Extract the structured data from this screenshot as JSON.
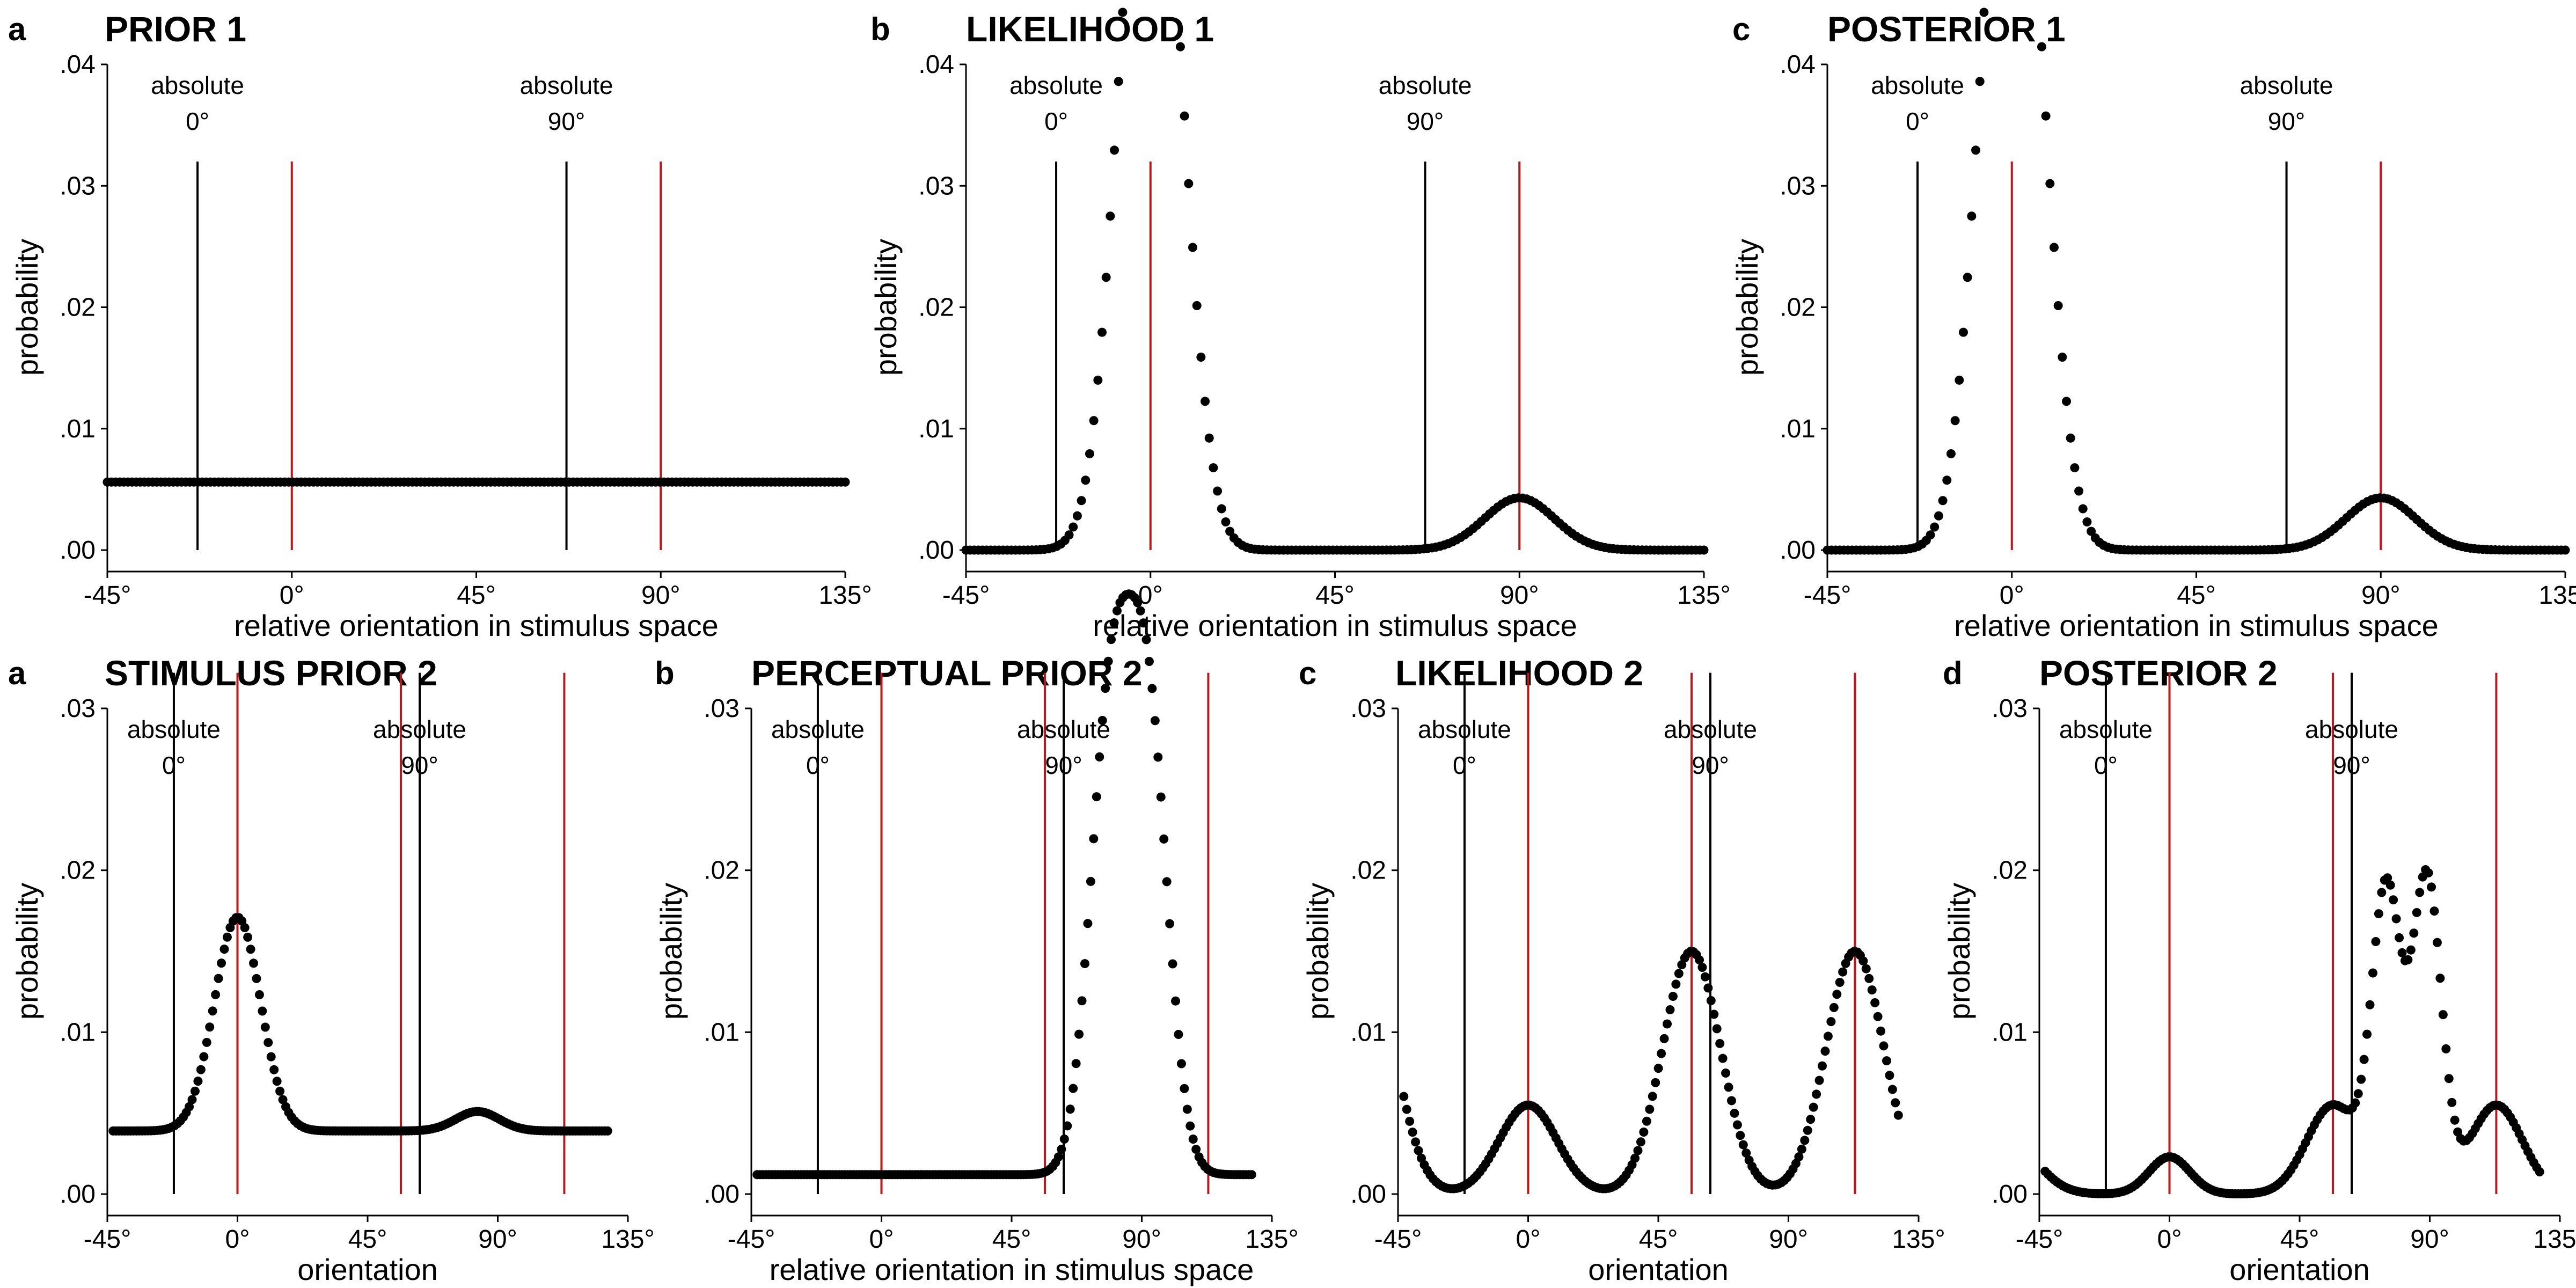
{
  "colors": {
    "dots": "#000000",
    "stimulus_line": "#000000",
    "perceptual_line": "#c0141a"
  },
  "chart_data": [
    {
      "type": "scatter",
      "letter": "a",
      "title": "PRIOR 1",
      "xlabel": "relative orientation in stimulus space",
      "ylabel": "probability",
      "xlim": [
        -45,
        135
      ],
      "ylim": [
        0,
        0.04
      ],
      "xticks": [
        -45,
        0,
        45,
        90,
        135
      ],
      "xtick_labels": [
        "-45°",
        "0°",
        "45°",
        "90°",
        "135°"
      ],
      "yticks": [
        0,
        0.01,
        0.02,
        0.03,
        0.04
      ],
      "ytick_labels": [
        ".00",
        ".01",
        ".02",
        ".03",
        ".04"
      ],
      "black_lines": [
        -23,
        67
      ],
      "red_lines": [
        0,
        90
      ],
      "line_top": 0.032,
      "annotations": [
        {
          "x": -23,
          "line1": "absolute",
          "line2": "0°"
        },
        {
          "x": 67,
          "line1": "absolute",
          "line2": "90°"
        }
      ],
      "curve": {
        "x_range": [
          -45,
          135
        ],
        "n": 180,
        "baseline": 0.0056,
        "peaks": []
      },
      "grid": false,
      "legend": "none"
    },
    {
      "type": "scatter",
      "letter": "b",
      "title": "LIKELIHOOD 1",
      "xlabel": "relative orientation in stimulus space",
      "ylabel": "probability",
      "xlim": [
        -45,
        135
      ],
      "ylim": [
        0,
        0.04
      ],
      "xticks": [
        -45,
        0,
        45,
        90,
        135
      ],
      "xtick_labels": [
        "-45°",
        "0°",
        "45°",
        "90°",
        "135°"
      ],
      "yticks": [
        0,
        0.01,
        0.02,
        0.03,
        0.04
      ],
      "ytick_labels": [
        ".00",
        ".01",
        ".02",
        ".03",
        ".04"
      ],
      "black_lines": [
        -23,
        67
      ],
      "red_lines": [
        0,
        90
      ],
      "line_top": 0.032,
      "annotations": [
        {
          "x": -23,
          "line1": "absolute",
          "line2": "0°"
        },
        {
          "x": 67,
          "line1": "absolute",
          "line2": "90°"
        }
      ],
      "curve": {
        "x_range": [
          -45,
          135
        ],
        "n": 180,
        "baseline": 0.0,
        "peaks": [
          {
            "mu": -3.5,
            "sigma": 6.2,
            "amp": 0.0395
          },
          {
            "mu": 3.5,
            "sigma": 6.2,
            "amp": 0.0395
          },
          {
            "mu": 90,
            "sigma": 8.5,
            "amp": 0.0043
          }
        ]
      },
      "grid": false,
      "legend": "none"
    },
    {
      "type": "scatter",
      "letter": "c",
      "title": "POSTERIOR 1",
      "xlabel": "relative orientation in stimulus space",
      "ylabel": "probability",
      "xlim": [
        -45,
        135
      ],
      "ylim": [
        0,
        0.04
      ],
      "xticks": [
        -45,
        0,
        45,
        90,
        135
      ],
      "xtick_labels": [
        "-45°",
        "0°",
        "45°",
        "90°",
        "135°"
      ],
      "yticks": [
        0,
        0.01,
        0.02,
        0.03,
        0.04
      ],
      "ytick_labels": [
        ".00",
        ".01",
        ".02",
        ".03",
        ".04"
      ],
      "black_lines": [
        -23,
        67
      ],
      "red_lines": [
        0,
        90
      ],
      "line_top": 0.032,
      "annotations": [
        {
          "x": -23,
          "line1": "absolute",
          "line2": "0°"
        },
        {
          "x": 67,
          "line1": "absolute",
          "line2": "90°"
        }
      ],
      "curve": {
        "x_range": [
          -45,
          135
        ],
        "n": 180,
        "baseline": 0.0,
        "peaks": [
          {
            "mu": -3.5,
            "sigma": 6.2,
            "amp": 0.0395
          },
          {
            "mu": 3.5,
            "sigma": 6.2,
            "amp": 0.0395
          },
          {
            "mu": 90,
            "sigma": 8.5,
            "amp": 0.0043
          }
        ]
      },
      "grid": false,
      "legend": "none"
    },
    {
      "type": "scatter",
      "letter": "a",
      "title": "STIMULUS PRIOR 2",
      "xlabel": "orientation",
      "ylabel": "probability",
      "xlim": [
        -45,
        135
      ],
      "ylim": [
        0,
        0.03
      ],
      "xticks": [
        -45,
        0,
        45,
        90,
        135
      ],
      "xtick_labels": [
        "-45°",
        "0°",
        "45°",
        "90°",
        "135°"
      ],
      "yticks": [
        0,
        0.01,
        0.02,
        0.03
      ],
      "ytick_labels": [
        ".00",
        ".01",
        ".02",
        ".03"
      ],
      "black_lines": [
        -22,
        63
      ],
      "red_lines": [
        0,
        56.5,
        113
      ],
      "line_top": 0.0322,
      "annotations": [
        {
          "x": -22,
          "line1": "absolute",
          "line2": "0°"
        },
        {
          "x": 63,
          "line1": "absolute",
          "line2": "90°"
        }
      ],
      "curve": {
        "x_range": [
          -43,
          128
        ],
        "n": 170,
        "baseline": 0.0039,
        "peaks": [
          {
            "mu": 0,
            "sigma": 8,
            "amp": 0.0132
          },
          {
            "mu": 83,
            "sigma": 7.5,
            "amp": 0.0012
          }
        ]
      },
      "grid": false,
      "legend": "none"
    },
    {
      "type": "scatter",
      "letter": "b",
      "title": "PERCEPTUAL PRIOR 2",
      "xlabel": "relative orientation in stimulus space",
      "ylabel": "probability",
      "xlim": [
        -45,
        135
      ],
      "ylim": [
        0,
        0.03
      ],
      "xticks": [
        -45,
        0,
        45,
        90,
        135
      ],
      "xtick_labels": [
        "-45°",
        "0°",
        "45°",
        "90°",
        "135°"
      ],
      "black_lines": [
        -22,
        63
      ],
      "red_lines": [
        0,
        56.5,
        113
      ],
      "line_top": 0.0322,
      "yticks": [
        0,
        0.01,
        0.02,
        0.03
      ],
      "ytick_labels": [
        ".00",
        ".01",
        ".02",
        ".03"
      ],
      "annotations": [
        {
          "x": -22,
          "line1": "absolute",
          "line2": "0°"
        },
        {
          "x": 63,
          "line1": "absolute",
          "line2": "90°"
        }
      ],
      "curve": {
        "x_range": [
          -43,
          128
        ],
        "n": 170,
        "baseline": 0.0012,
        "peaks": [
          {
            "mu": 79,
            "sigma": 7,
            "amp": 0.0276
          },
          {
            "mu": 92,
            "sigma": 7,
            "amp": 0.0276
          }
        ]
      },
      "grid": false,
      "legend": "none"
    },
    {
      "type": "scatter",
      "letter": "c",
      "title": "LIKELIHOOD 2",
      "xlabel": "orientation",
      "ylabel": "probability",
      "xlim": [
        -45,
        135
      ],
      "ylim": [
        0,
        0.03
      ],
      "xticks": [
        -45,
        0,
        45,
        90,
        135
      ],
      "xtick_labels": [
        "-45°",
        "0°",
        "45°",
        "90°",
        "135°"
      ],
      "yticks": [
        0,
        0.01,
        0.02,
        0.03
      ],
      "ytick_labels": [
        ".00",
        ".01",
        ".02",
        ".03"
      ],
      "black_lines": [
        -22,
        63
      ],
      "red_lines": [
        0,
        56.5,
        113
      ],
      "line_top": 0.0322,
      "annotations": [
        {
          "x": -22,
          "line1": "absolute",
          "line2": "0°"
        },
        {
          "x": 63,
          "line1": "absolute",
          "line2": "90°"
        }
      ],
      "curve": {
        "x_range": [
          -43,
          128
        ],
        "n": 170,
        "baseline": 0.0,
        "peaks": [
          {
            "mu": -56.5,
            "sigma": 10,
            "amp": 0.015
          },
          {
            "mu": 0,
            "sigma": 10,
            "amp": 0.0055
          },
          {
            "mu": 56.5,
            "sigma": 10,
            "amp": 0.015
          },
          {
            "mu": 113,
            "sigma": 10,
            "amp": 0.015
          },
          {
            "mu": 169.5,
            "sigma": 10,
            "amp": 0.0055
          }
        ]
      },
      "grid": false,
      "legend": "none"
    },
    {
      "type": "scatter",
      "letter": "d",
      "title": "POSTERIOR 2",
      "xlabel": "orientation",
      "ylabel": "probability",
      "xlim": [
        -45,
        135
      ],
      "ylim": [
        0,
        0.03
      ],
      "xticks": [
        -45,
        0,
        45,
        90,
        135
      ],
      "xtick_labels": [
        "-45°",
        "0°",
        "45°",
        "90°",
        "135°"
      ],
      "yticks": [
        0,
        0.01,
        0.02,
        0.03
      ],
      "ytick_labels": [
        ".00",
        ".01",
        ".02",
        ".03"
      ],
      "black_lines": [
        -22,
        63
      ],
      "red_lines": [
        0,
        56.5,
        113
      ],
      "line_top": 0.0322,
      "annotations": [
        {
          "x": -22,
          "line1": "absolute",
          "line2": "0°"
        },
        {
          "x": 63,
          "line1": "absolute",
          "line2": "90°"
        }
      ],
      "curve": {
        "x_range": [
          -43,
          128
        ],
        "n": 170,
        "baseline": 0.0,
        "peaks": [
          {
            "mu": -56.5,
            "sigma": 10,
            "amp": 0.0035
          },
          {
            "mu": 0,
            "sigma": 7,
            "amp": 0.0023
          },
          {
            "mu": 56.5,
            "sigma": 9,
            "amp": 0.0055
          },
          {
            "mu": 75,
            "sigma": 5,
            "amp": 0.0185
          },
          {
            "mu": 89,
            "sigma": 5,
            "amp": 0.0195
          },
          {
            "mu": 113,
            "sigma": 9,
            "amp": 0.0055
          }
        ]
      },
      "grid": false,
      "legend": "none"
    }
  ]
}
